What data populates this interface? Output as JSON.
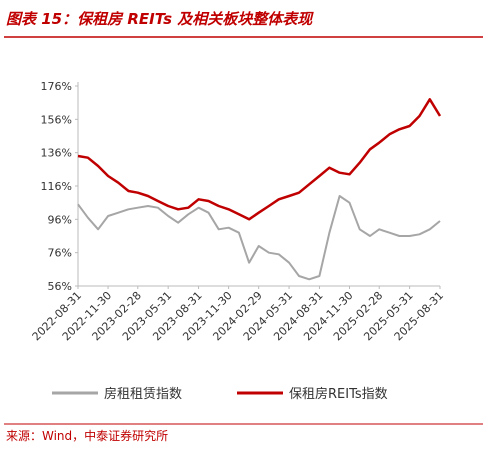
{
  "chart_data": {
    "type": "line",
    "title": "图表 15：保租房 REITs 及相关板块整体表现",
    "source": "来源：Wind，中泰证券研究所",
    "x": [
      "2022-08-31",
      "2022-09-30",
      "2022-10-31",
      "2022-11-30",
      "2022-12-31",
      "2023-01-31",
      "2023-02-28",
      "2023-03-31",
      "2023-04-30",
      "2023-05-31",
      "2023-06-30",
      "2023-07-31",
      "2023-08-31",
      "2023-09-30",
      "2023-10-31",
      "2023-11-30",
      "2023-12-31",
      "2024-01-31",
      "2024-02-29",
      "2024-03-31",
      "2024-04-30",
      "2024-05-31",
      "2024-06-30",
      "2024-07-31",
      "2024-08-31",
      "2024-09-30",
      "2024-10-31",
      "2024-11-30",
      "2024-12-31",
      "2025-01-31",
      "2025-02-28",
      "2025-03-31",
      "2025-04-30",
      "2025-05-31",
      "2025-06-30",
      "2025-07-31",
      "2025-08-31"
    ],
    "series": [
      {
        "name": "房租租赁指数",
        "color": "#a6a6a6",
        "values": [
          105,
          97,
          90,
          98,
          100,
          102,
          103,
          104,
          103,
          98,
          94,
          99,
          103,
          100,
          90,
          91,
          88,
          70,
          80,
          76,
          75,
          70,
          62,
          60,
          62,
          88,
          110,
          106,
          90,
          86,
          90,
          88,
          86,
          86,
          87,
          90,
          95
        ]
      },
      {
        "name": "保租房REITs指数",
        "color": "#c00000",
        "values": [
          134,
          133,
          128,
          122,
          118,
          113,
          112,
          110,
          107,
          104,
          102,
          103,
          108,
          107,
          104,
          102,
          99,
          96,
          100,
          104,
          108,
          110,
          112,
          117,
          122,
          127,
          124,
          123,
          130,
          138,
          142,
          147,
          150,
          152,
          158,
          168,
          158
        ]
      }
    ],
    "xlim": [
      "2022-08-31",
      "2025-08-31"
    ],
    "xticks": [
      "2022-08-31",
      "2022-11-30",
      "2023-02-28",
      "2023-05-31",
      "2023-08-31",
      "2023-11-30",
      "2024-02-29",
      "2024-05-31",
      "2024-08-31",
      "2024-11-30",
      "2025-02-28",
      "2025-05-31",
      "2025-08-31"
    ],
    "ylim": [
      56,
      176
    ],
    "yticks": [
      {
        "value": 56,
        "label": "56%"
      },
      {
        "value": 76,
        "label": "76%"
      },
      {
        "value": 96,
        "label": "96%"
      },
      {
        "value": 116,
        "label": "116%"
      },
      {
        "value": 136,
        "label": "136%"
      },
      {
        "value": 156,
        "label": "156%"
      },
      {
        "value": 176,
        "label": "176%"
      }
    ]
  }
}
